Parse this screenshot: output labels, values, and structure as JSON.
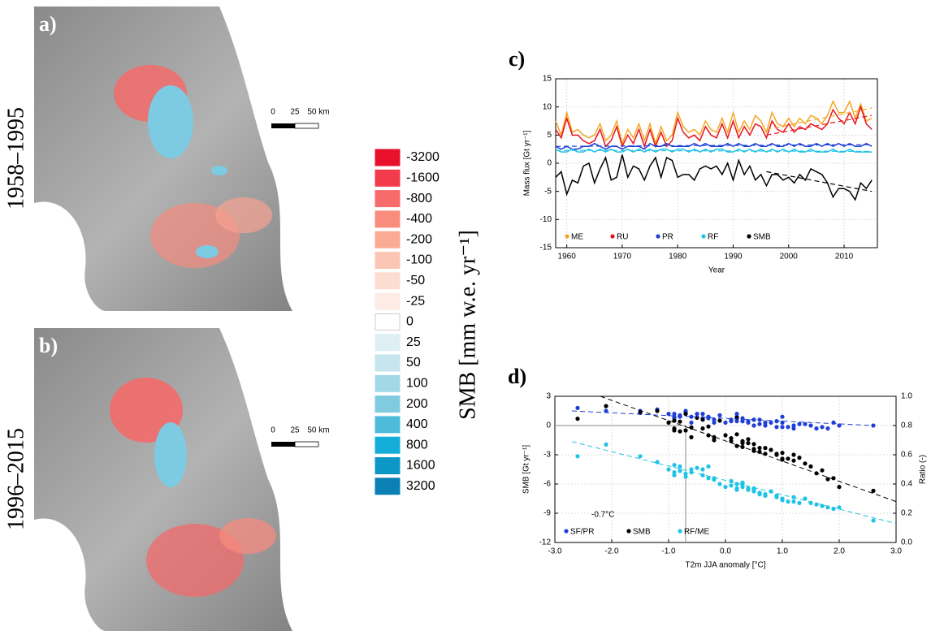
{
  "maps": {
    "panels": [
      "a)",
      "b)"
    ],
    "periods": [
      "1958–1995",
      "1996–2015"
    ],
    "scale_labels": [
      "0",
      "25",
      "50 km"
    ]
  },
  "colorbar": {
    "title": "SMB [mm w.e. yr⁻¹]",
    "values": [
      -3200,
      -1600,
      -800,
      -400,
      -200,
      -100,
      -50,
      -25,
      0,
      25,
      50,
      100,
      200,
      400,
      800,
      1600,
      3200
    ],
    "colors": [
      "#e8102a",
      "#f23c4c",
      "#f76b6b",
      "#f98c7c",
      "#fbab94",
      "#fcc6b4",
      "#fddcd2",
      "#fdebe5",
      "#ffffff",
      "#deeff4",
      "#c6e5ef",
      "#a3d8e8",
      "#80cbe0",
      "#4fbbdb",
      "#12aed9",
      "#0c97c7",
      "#0a80b4"
    ]
  },
  "chart_data": [
    {
      "type": "line",
      "panel": "c)",
      "y_label": "Mass flux [Gt yr⁻¹]",
      "x_label": "Year",
      "x": [
        1958,
        1959,
        1960,
        1961,
        1962,
        1963,
        1964,
        1965,
        1966,
        1967,
        1968,
        1969,
        1970,
        1971,
        1972,
        1973,
        1974,
        1975,
        1976,
        1977,
        1978,
        1979,
        1980,
        1981,
        1982,
        1983,
        1984,
        1985,
        1986,
        1987,
        1988,
        1989,
        1990,
        1991,
        1992,
        1993,
        1994,
        1995,
        1996,
        1997,
        1998,
        1999,
        2000,
        2001,
        2002,
        2003,
        2004,
        2005,
        2006,
        2007,
        2008,
        2009,
        2010,
        2011,
        2012,
        2013,
        2014,
        2015
      ],
      "xlim": [
        1958,
        2016
      ],
      "xticks": [
        1960,
        1970,
        1980,
        1990,
        2000,
        2010
      ],
      "ylim": [
        -15,
        15
      ],
      "yticks": [
        -15,
        -10,
        -5,
        0,
        5,
        10,
        15
      ],
      "grid": true,
      "legend": "lower-left",
      "series": [
        {
          "name": "ME",
          "color": "#f5a623",
          "values": [
            7.5,
            5,
            9,
            5.5,
            6,
            5,
            4.5,
            5,
            7,
            4,
            5,
            7.5,
            3.5,
            6,
            4.5,
            7,
            4,
            7,
            3.5,
            6.5,
            4,
            5,
            9,
            6.5,
            5.5,
            6,
            5,
            7.5,
            6,
            5.5,
            8,
            5.5,
            9,
            5.5,
            7.5,
            6,
            8.5,
            7.5,
            5.5,
            9,
            7,
            6.5,
            8,
            6.5,
            8,
            7,
            8.5,
            8,
            7,
            8.5,
            11,
            9,
            9,
            11,
            8,
            10.5,
            7.5,
            8
          ]
        },
        {
          "name": "RU",
          "color": "#e8141c",
          "values": [
            6,
            4.5,
            8,
            5,
            5,
            4,
            3.5,
            4,
            6,
            3,
            4,
            6.5,
            3,
            5,
            3.5,
            6,
            3,
            6,
            3,
            5.5,
            3,
            4,
            8,
            5.5,
            4.5,
            5,
            4,
            6.5,
            5,
            4.5,
            7,
            4.5,
            7.5,
            4.5,
            6.5,
            5,
            7,
            6.5,
            4.5,
            7.5,
            6,
            5.5,
            7,
            5.5,
            6.5,
            6,
            7,
            6.5,
            6,
            7,
            9.5,
            8,
            7,
            9,
            7,
            10,
            7,
            6
          ]
        },
        {
          "name": "PR",
          "color": "#1f3fd6",
          "values": [
            3,
            2.5,
            3,
            2.5,
            2.5,
            3,
            3,
            3.5,
            3,
            2.5,
            3,
            3,
            2.5,
            3,
            3,
            3,
            2.5,
            3.5,
            3,
            3,
            3.5,
            3,
            3,
            3,
            3,
            3.5,
            3,
            3.5,
            3,
            3,
            3,
            3.5,
            3,
            3.5,
            3,
            3,
            3.5,
            3,
            3,
            3.5,
            3,
            3,
            3.5,
            3,
            3.5,
            3,
            3,
            3.5,
            3,
            3.5,
            3,
            3.5,
            3,
            3.5,
            3,
            3,
            3.5,
            3
          ]
        },
        {
          "name": "RF",
          "color": "#1ec3e6",
          "values": [
            2.5,
            2,
            2,
            2.5,
            2,
            2,
            2.5,
            2,
            2.5,
            2,
            2.5,
            2,
            2,
            2.5,
            2,
            2.5,
            2,
            2.5,
            2,
            2.5,
            2.5,
            2,
            2.5,
            2.5,
            2,
            2.5,
            2,
            2.5,
            2,
            2.5,
            2.5,
            2,
            2,
            2.5,
            2,
            2.5,
            2,
            2.5,
            2,
            2.5,
            2,
            2.5,
            2,
            2.5,
            2,
            2,
            2.5,
            2,
            2,
            2,
            2.5,
            2,
            2,
            2.5,
            2,
            2,
            2,
            2
          ]
        },
        {
          "name": "SMB",
          "color": "#000000",
          "values": [
            -2.5,
            -1.5,
            -5.5,
            -3,
            -3.5,
            -0.5,
            0,
            -3.5,
            -1,
            1,
            -3,
            -2.5,
            1.5,
            -2.5,
            -0.5,
            -1,
            -3,
            -0.5,
            1,
            -2.5,
            1,
            0.5,
            -2.5,
            -2,
            -2,
            -3,
            -1,
            -0.5,
            -1,
            -0.5,
            -2,
            0,
            -3,
            0.5,
            -2,
            -0.5,
            -3,
            -2,
            -4,
            -2,
            -2,
            -3,
            -2.5,
            -3.5,
            -2,
            -3,
            -1,
            -1.5,
            -2,
            -3.5,
            -6,
            -4.5,
            -4.5,
            -5,
            -6.5,
            -3.5,
            -4.5,
            -3
          ]
        }
      ],
      "trends": [
        {
          "color": "#f5a623",
          "x": [
            1996,
            2015
          ],
          "values": [
            6,
            9.8
          ]
        },
        {
          "color": "#e8141c",
          "x": [
            1996,
            2015
          ],
          "values": [
            5,
            8.5
          ]
        },
        {
          "color": "#1f3fd6",
          "x": [
            1958,
            2015
          ],
          "values": [
            3,
            3.3
          ]
        },
        {
          "color": "#1ec3e6",
          "x": [
            1958,
            2015
          ],
          "values": [
            2.3,
            2.1
          ]
        },
        {
          "color": "#000000",
          "x": [
            1996,
            2015
          ],
          "values": [
            -1.5,
            -5
          ]
        }
      ]
    },
    {
      "type": "scatter",
      "panel": "d)",
      "y_label": "SMB [Gt yr⁻¹]",
      "y2_label": "Ratio (-)",
      "x_label": "T2m JJA anomaly [°C]",
      "xlim": [
        -3,
        3
      ],
      "xticks": [
        {
          "value": -3,
          "label": "-3.0"
        },
        {
          "value": -2,
          "label": "-2.0"
        },
        {
          "value": -1,
          "label": "-1.0"
        },
        {
          "value": 0,
          "label": "0.0"
        },
        {
          "value": 1,
          "label": "1.0"
        },
        {
          "value": 2,
          "label": "2.0"
        },
        {
          "value": 3,
          "label": "3.0"
        }
      ],
      "ylim": [
        -12,
        3
      ],
      "yticks": [
        -12,
        -9,
        -6,
        -3,
        0,
        3
      ],
      "y2lim": [
        0,
        1
      ],
      "y2ticks": [
        {
          "value": 0,
          "label": "0.0"
        },
        {
          "value": 0.2,
          "label": "0.2"
        },
        {
          "value": 0.4,
          "label": "0.4"
        },
        {
          "value": 0.6,
          "label": "0.6"
        },
        {
          "value": 0.8,
          "label": "0.8"
        },
        {
          "value": 1,
          "label": "1.0"
        }
      ],
      "grid": true,
      "legend": "lower-left",
      "threshold": {
        "value": -0.7,
        "label": "-0.7°C"
      },
      "x": [
        -0.6,
        -2.6,
        -0.9,
        -1.5,
        0.3,
        -2.1,
        -1.0,
        -0.8,
        -0.4,
        -0.7,
        -0.9,
        -0.2,
        -1.2,
        -0.5,
        -0.3,
        -0.7,
        -0.1,
        0.0,
        -0.9,
        -0.2,
        0.2,
        -0.6,
        0.5,
        0.1,
        -0.8,
        0.4,
        0.6,
        0.2,
        0.9,
        0.3,
        -0.4,
        0.7,
        1.0,
        0.5,
        -0.3,
        0.8,
        0.4,
        1.2,
        0.1,
        0.6,
        1.0,
        1.4,
        0.2,
        0.7,
        1.1,
        0.3,
        1.5,
        0.9,
        1.8,
        1.3,
        1.7,
        2.6,
        0.5,
        1.9,
        2.0,
        1.0,
        1.6,
        1.2
      ],
      "series": [
        {
          "name": "SF/PR",
          "color": "#1f3fd6",
          "axis": "y2",
          "values": [
            0.86,
            0.92,
            0.88,
            0.9,
            0.83,
            0.9,
            0.88,
            0.87,
            0.85,
            0.9,
            0.86,
            0.84,
            0.91,
            0.88,
            0.86,
            0.89,
            0.87,
            0.82,
            0.85,
            0.82,
            0.88,
            0.82,
            0.8,
            0.83,
            0.86,
            0.82,
            0.84,
            0.86,
            0.79,
            0.83,
            0.88,
            0.8,
            0.79,
            0.84,
            0.85,
            0.82,
            0.83,
            0.78,
            0.84,
            0.81,
            0.82,
            0.81,
            0.83,
            0.82,
            0.79,
            0.85,
            0.8,
            0.83,
            0.78,
            0.81,
            0.79,
            0.8,
            0.84,
            0.82,
            0.8,
            0.86,
            0.78,
            0.8
          ]
        },
        {
          "name": "SMB",
          "color": "#000000",
          "values": [
            -0.2,
            0.7,
            0.5,
            1.3,
            -1.8,
            2.0,
            0.3,
            -0.6,
            0.6,
            1.2,
            -0.3,
            -1.2,
            1.5,
            0.8,
            -0.1,
            -0.5,
            0.5,
            -1.0,
            -0.5,
            -1.5,
            0.8,
            -1.2,
            -2.6,
            -1.3,
            0.4,
            -1.8,
            -2.3,
            -0.9,
            -3.0,
            -2.2,
            -0.3,
            -2.9,
            -3.5,
            -1.9,
            -1.0,
            -2.5,
            -1.4,
            -3.6,
            -1.6,
            -2.7,
            -2.8,
            -3.9,
            -2.1,
            -2.3,
            -3.4,
            -1.6,
            -4.2,
            -2.9,
            -5.5,
            -3.3,
            -4.6,
            -6.7,
            -2.4,
            -5.4,
            -6.3,
            -3.4,
            -4.9,
            -3.0
          ]
        },
        {
          "name": "RF/ME",
          "color": "#1ec3e6",
          "axis": "y2",
          "values": [
            0.48,
            0.59,
            0.53,
            0.59,
            0.4,
            0.67,
            0.5,
            0.49,
            0.46,
            0.45,
            0.48,
            0.43,
            0.55,
            0.51,
            0.52,
            0.47,
            0.4,
            0.38,
            0.46,
            0.44,
            0.37,
            0.5,
            0.35,
            0.42,
            0.52,
            0.37,
            0.33,
            0.4,
            0.32,
            0.38,
            0.5,
            0.33,
            0.3,
            0.36,
            0.44,
            0.35,
            0.36,
            0.31,
            0.39,
            0.34,
            0.29,
            0.3,
            0.36,
            0.32,
            0.28,
            0.41,
            0.27,
            0.31,
            0.24,
            0.27,
            0.25,
            0.15,
            0.37,
            0.23,
            0.24,
            0.29,
            0.26,
            0.28
          ]
        }
      ],
      "fits": [
        {
          "color": "#1f3fd6",
          "axis": "y2",
          "x": [
            -2.7,
            2.6
          ],
          "values": [
            0.9,
            0.8
          ]
        },
        {
          "color": "#000000",
          "x": [
            -2.2,
            3.0
          ],
          "values": [
            3,
            -7.8
          ]
        },
        {
          "color": "#1ec3e6",
          "axis": "y2",
          "x": [
            -2.7,
            3.0
          ],
          "values": [
            0.69,
            0.13
          ]
        }
      ]
    }
  ]
}
